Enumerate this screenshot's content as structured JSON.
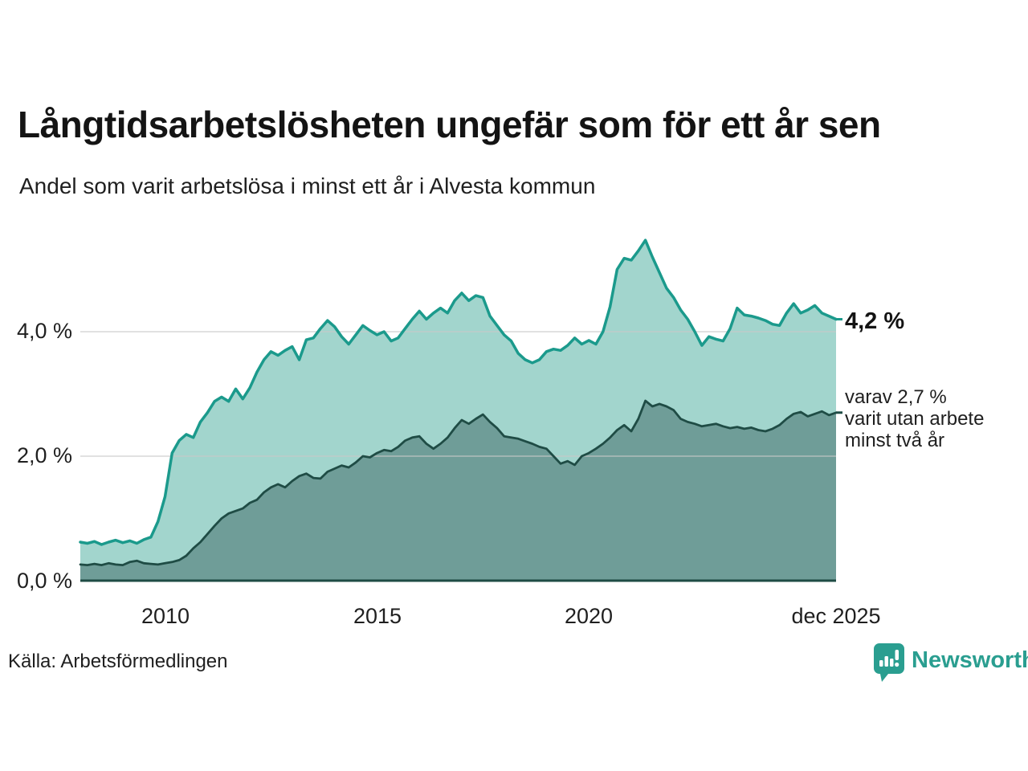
{
  "header": {
    "title": "Långtidsarbetslösheten ungefär som för ett år sen",
    "subtitle": "Andel som varit arbetslösa i minst ett år i Alvesta kommun"
  },
  "chart_data": {
    "type": "area",
    "title": "Långtidsarbetslösheten ungefär som för ett år sen",
    "subtitle": "Andel som varit arbetslösa i minst ett år i Alvesta kommun",
    "unit": "%",
    "x_start_year": 2008.0,
    "x_step_years": 0.16667,
    "x_end_label": "dec 2025",
    "ylim": [
      0,
      5.7
    ],
    "grid": true,
    "y_ticks": [
      {
        "value": 0,
        "label": "0,0 %"
      },
      {
        "value": 2,
        "label": "2,0 %"
      },
      {
        "value": 4,
        "label": "4,0 %"
      }
    ],
    "x_ticks": [
      {
        "year": 2010,
        "label": "2010"
      },
      {
        "year": 2015,
        "label": "2015"
      },
      {
        "year": 2020,
        "label": "2020"
      },
      {
        "year": 2025.83,
        "label": "dec 2025"
      }
    ],
    "series": [
      {
        "name": "Arbetslösa minst ett år",
        "color": "#1b9a8c",
        "fill": "#a2d5cd",
        "end_value": 4.2,
        "values": [
          0.62,
          0.6,
          0.63,
          0.58,
          0.62,
          0.65,
          0.61,
          0.64,
          0.6,
          0.66,
          0.7,
          0.95,
          1.35,
          2.05,
          2.25,
          2.35,
          2.3,
          2.55,
          2.7,
          2.88,
          2.95,
          2.88,
          3.08,
          2.92,
          3.1,
          3.35,
          3.55,
          3.68,
          3.62,
          3.7,
          3.76,
          3.55,
          3.87,
          3.9,
          4.05,
          4.18,
          4.08,
          3.92,
          3.8,
          3.95,
          4.1,
          4.02,
          3.95,
          4.0,
          3.85,
          3.9,
          4.05,
          4.2,
          4.33,
          4.2,
          4.3,
          4.38,
          4.3,
          4.5,
          4.62,
          4.5,
          4.58,
          4.55,
          4.25,
          4.1,
          3.95,
          3.85,
          3.65,
          3.55,
          3.5,
          3.55,
          3.68,
          3.72,
          3.7,
          3.78,
          3.9,
          3.8,
          3.86,
          3.8,
          4.0,
          4.4,
          5.0,
          5.18,
          5.15,
          5.3,
          5.47,
          5.2,
          4.95,
          4.7,
          4.55,
          4.35,
          4.2,
          4.0,
          3.78,
          3.92,
          3.88,
          3.85,
          4.05,
          4.38,
          4.27,
          4.25,
          4.22,
          4.18,
          4.12,
          4.1,
          4.3,
          4.45,
          4.3,
          4.35,
          4.42,
          4.3,
          4.25,
          4.2
        ]
      },
      {
        "name": "Arbetslösa minst två år",
        "color": "#1f4c45",
        "fill": "#6f9d98",
        "end_value": 2.7,
        "values": [
          0.26,
          0.25,
          0.27,
          0.25,
          0.28,
          0.26,
          0.25,
          0.3,
          0.32,
          0.28,
          0.27,
          0.26,
          0.28,
          0.3,
          0.33,
          0.4,
          0.52,
          0.62,
          0.75,
          0.88,
          1.0,
          1.08,
          1.12,
          1.16,
          1.25,
          1.3,
          1.42,
          1.5,
          1.55,
          1.5,
          1.6,
          1.68,
          1.72,
          1.65,
          1.64,
          1.75,
          1.8,
          1.85,
          1.82,
          1.9,
          2.0,
          1.98,
          2.05,
          2.1,
          2.08,
          2.15,
          2.25,
          2.3,
          2.32,
          2.2,
          2.12,
          2.2,
          2.3,
          2.45,
          2.58,
          2.52,
          2.6,
          2.67,
          2.55,
          2.45,
          2.32,
          2.3,
          2.28,
          2.24,
          2.2,
          2.15,
          2.12,
          2.0,
          1.88,
          1.92,
          1.86,
          2.0,
          2.05,
          2.12,
          2.2,
          2.3,
          2.42,
          2.5,
          2.4,
          2.6,
          2.89,
          2.8,
          2.84,
          2.8,
          2.74,
          2.6,
          2.55,
          2.52,
          2.48,
          2.5,
          2.52,
          2.48,
          2.45,
          2.47,
          2.44,
          2.46,
          2.42,
          2.4,
          2.44,
          2.5,
          2.6,
          2.68,
          2.71,
          2.64,
          2.68,
          2.72,
          2.66,
          2.7
        ]
      }
    ],
    "grid_color": "#c9c9c9",
    "baseline_color": "#1f4c45"
  },
  "annotations": {
    "end_value_label": "4,2 %",
    "secondary_line1": "varav 2,7 %",
    "secondary_line2": "varit utan arbete",
    "secondary_line3": "minst två år"
  },
  "footer": {
    "source": "Källa: Arbetsförmedlingen",
    "brand": "Newsworthy",
    "brand_color": "#2a9e90"
  }
}
